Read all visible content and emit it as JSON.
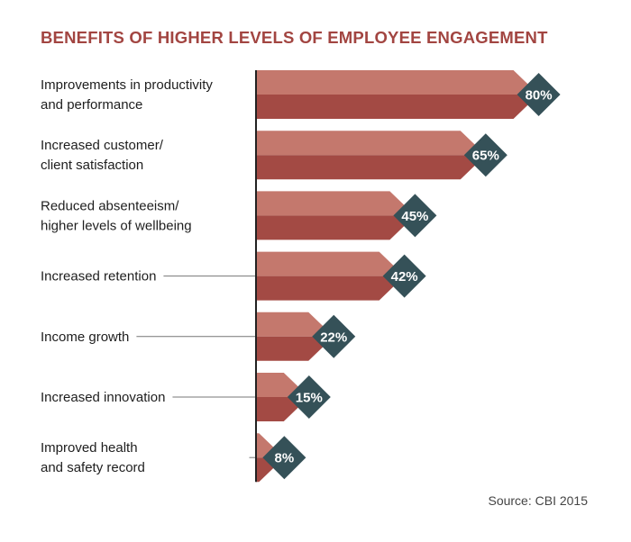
{
  "chart_data": {
    "type": "bar",
    "orientation": "horizontal",
    "title": "BENEFITS OF HIGHER LEVELS OF EMPLOYEE ENGAGEMENT",
    "categories": [
      [
        "Improvements in productivity",
        "and performance"
      ],
      [
        "Increased customer/",
        "client satisfaction"
      ],
      [
        "Reduced absenteeism/",
        "higher levels of wellbeing"
      ],
      [
        "Increased retention"
      ],
      [
        "Income growth"
      ],
      [
        "Increased innovation"
      ],
      [
        "Improved health",
        "and safety record"
      ]
    ],
    "values": [
      80,
      65,
      45,
      42,
      22,
      15,
      8
    ],
    "value_labels": [
      "80%",
      "65%",
      "45%",
      "42%",
      "22%",
      "15%",
      "8%"
    ],
    "unit": "%",
    "xlim": [
      0,
      100
    ],
    "grid": false,
    "legend": "none",
    "source": "Source: CBI 2015",
    "colors": {
      "title": "#a24541",
      "bar_top": "#c4786d",
      "bar_bottom": "#a34a44",
      "badge": "#355158",
      "leader_line": "#777777",
      "axis": "#222222",
      "label_text": "#1e1e1e"
    }
  }
}
